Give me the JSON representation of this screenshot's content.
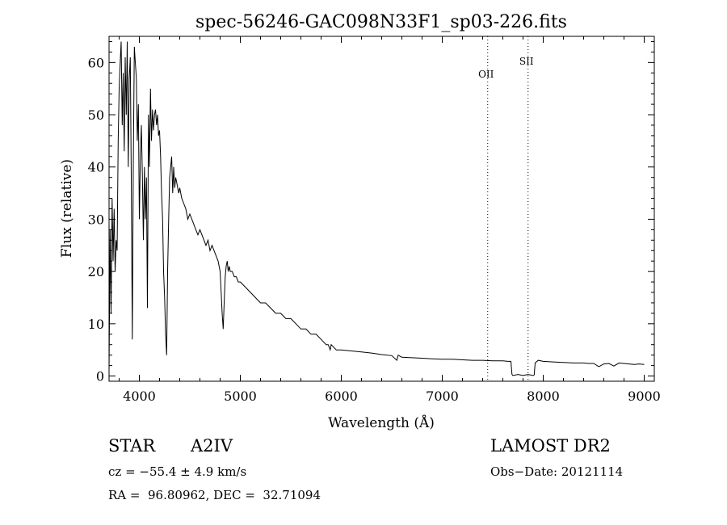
{
  "chart_data": {
    "type": "line",
    "title": "spec-56246-GAC098N33F1_sp03-226.fits",
    "xlabel": "Wavelength (Å)",
    "ylabel": "Flux (relative)",
    "xlim": [
      3700,
      9100
    ],
    "ylim": [
      -1,
      65
    ],
    "x_ticks": [
      4000,
      5000,
      6000,
      7000,
      8000,
      9000
    ],
    "y_ticks": [
      0,
      10,
      20,
      30,
      40,
      50,
      60
    ],
    "grid": false,
    "line_color": "#000000",
    "series": [
      {
        "x": [
          3700,
          3710,
          3720,
          3730,
          3740,
          3750,
          3760,
          3770,
          3780,
          3790,
          3800,
          3810,
          3820,
          3830,
          3840,
          3850,
          3860,
          3870,
          3880,
          3890,
          3900,
          3910,
          3920,
          3930,
          3940,
          3950,
          3960,
          3970,
          3980,
          3990,
          4000,
          4010,
          4020,
          4030,
          4040,
          4050,
          4060,
          4070,
          4080,
          4090,
          4100,
          4110,
          4120,
          4130,
          4140,
          4150,
          4160,
          4170,
          4180,
          4190,
          4200,
          4210,
          4220,
          4230,
          4240,
          4250,
          4260,
          4270,
          4280,
          4290,
          4300,
          4310,
          4320,
          4330,
          4340,
          4350,
          4360,
          4370,
          4380,
          4390,
          4400,
          4420,
          4440,
          4460,
          4480,
          4500,
          4520,
          4540,
          4560,
          4580,
          4600,
          4620,
          4640,
          4660,
          4680,
          4700,
          4720,
          4740,
          4760,
          4780,
          4800,
          4810,
          4820,
          4830,
          4840,
          4850,
          4860,
          4870,
          4880,
          4890,
          4900,
          4920,
          4940,
          4960,
          4980,
          5000,
          5050,
          5100,
          5150,
          5200,
          5250,
          5300,
          5350,
          5400,
          5450,
          5500,
          5550,
          5600,
          5650,
          5700,
          5750,
          5800,
          5850,
          5870,
          5890,
          5900,
          5950,
          6000,
          6100,
          6200,
          6300,
          6400,
          6500,
          6550,
          6563,
          6580,
          6600,
          6700,
          6800,
          6900,
          7000,
          7100,
          7200,
          7300,
          7400,
          7500,
          7600,
          7650,
          7680,
          7690,
          7700,
          7750,
          7800,
          7850,
          7900,
          7910,
          7920,
          7950,
          8000,
          8100,
          8200,
          8300,
          8400,
          8450,
          8500,
          8550,
          8600,
          8650,
          8700,
          8750,
          8800,
          8850,
          8900,
          8950,
          9000
        ],
        "values": [
          1,
          28,
          12,
          34,
          22,
          32,
          20,
          26,
          24,
          45,
          55,
          60,
          64,
          48,
          58,
          43,
          61,
          50,
          64,
          40,
          57,
          61,
          38,
          7,
          40,
          63,
          60,
          57,
          45,
          52,
          30,
          42,
          48,
          38,
          26,
          40,
          30,
          38,
          13,
          50,
          40,
          55,
          45,
          51,
          47,
          50,
          51,
          48,
          50,
          46,
          47,
          42,
          35,
          30,
          20,
          15,
          8,
          4,
          20,
          30,
          38,
          40,
          42,
          35,
          40,
          36,
          38,
          37,
          36,
          35,
          36,
          34,
          33,
          32,
          30,
          31,
          30,
          29,
          28,
          27,
          28,
          27,
          26,
          25,
          26,
          24,
          25,
          24,
          23,
          22,
          20,
          16,
          12,
          9,
          14,
          19,
          21,
          22,
          20,
          21,
          20,
          20,
          19,
          19,
          18,
          18,
          17,
          16,
          15,
          14,
          14,
          13,
          12,
          12,
          11,
          11,
          10,
          9,
          9,
          8,
          8,
          7,
          6,
          6,
          5,
          6,
          5,
          5,
          4.8,
          4.6,
          4.4,
          4.1,
          3.9,
          3,
          4,
          3.8,
          3.6,
          3.5,
          3.4,
          3.3,
          3.2,
          3.2,
          3.1,
          3,
          3,
          2.9,
          2.9,
          2.8,
          2.8,
          0.3,
          0.1,
          0.3,
          0.1,
          0.3,
          0.1,
          0.2,
          2.5,
          3,
          2.8,
          2.7,
          2.6,
          2.5,
          2.5,
          2.4,
          2.4,
          1.8,
          2.3,
          2.4,
          1.9,
          2.5,
          2.4,
          2.3,
          2.2,
          2.3,
          2.2
        ]
      }
    ],
    "lines": [
      {
        "label": "OII",
        "x": 7450
      },
      {
        "label": "SII",
        "x": 7850
      }
    ]
  },
  "info": {
    "object_type": "STAR",
    "subclass": "A2IV",
    "velocity": "cz = −55.4 ± 4.9 km/s",
    "coords": "RA =  96.80962, DEC =  32.71094",
    "survey": "LAMOST DR2",
    "obs_date": "Obs−Date: 20121114"
  }
}
